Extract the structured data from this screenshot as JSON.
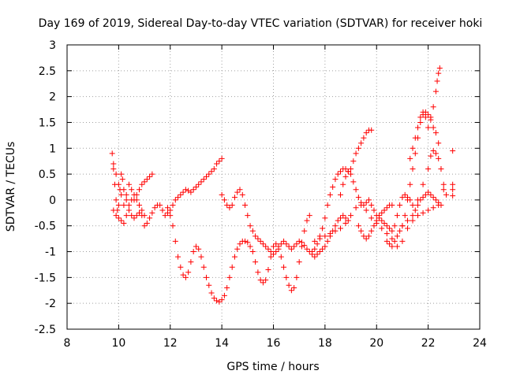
{
  "chart_data": {
    "type": "scatter",
    "title": "Day 169 of 2019, Sidereal Day-to-day VTEC variation (SDTVAR) for receiver hoki",
    "xlabel": "GPS time / hours",
    "ylabel": "SDTVAR / TECUs",
    "xlim": [
      8,
      24
    ],
    "ylim": [
      -2.5,
      3
    ],
    "x_ticks": [
      8,
      10,
      12,
      14,
      16,
      18,
      20,
      22,
      24
    ],
    "y_ticks": [
      -2.5,
      -2,
      -1.5,
      -1,
      -0.5,
      0,
      0.5,
      1,
      1.5,
      2,
      2.5,
      3
    ],
    "x_tick_labels": [
      "8",
      "10",
      "12",
      "14",
      "16",
      "18",
      "20",
      "22",
      "24"
    ],
    "y_tick_labels": [
      "-2.5",
      "-2",
      "-1.5",
      "-1",
      "-0.5",
      "0",
      "0.5",
      "1",
      "1.5",
      "2",
      "2.5",
      "3"
    ],
    "grid": true,
    "marker": "+",
    "color": "#ff0000",
    "series": [
      {
        "x": [
          9.75,
          9.8,
          9.85,
          9.9,
          9.95,
          10.0,
          10.05,
          10.1,
          10.15,
          10.2,
          10.3,
          10.4,
          10.5,
          10.6,
          10.7,
          10.8,
          10.9,
          11.0,
          11.1,
          11.2,
          11.3,
          11.4,
          11.5,
          11.6,
          11.7,
          11.8,
          11.9,
          12.0,
          12.1,
          12.2,
          12.3,
          12.4,
          12.5,
          12.6,
          12.7,
          12.8,
          12.9,
          13.0,
          13.1,
          13.2,
          13.3,
          13.4,
          13.5,
          13.6,
          13.7,
          13.8,
          13.9,
          14.0
        ],
        "y": [
          0.9,
          0.6,
          0.3,
          0.0,
          -0.2,
          -0.1,
          0.2,
          0.5,
          0.4,
          0.2,
          0.0,
          -0.2,
          -0.3,
          -0.35,
          -0.3,
          -0.25,
          -0.3,
          -0.5,
          -0.45,
          -0.35,
          -0.25,
          -0.15,
          -0.1,
          -0.1,
          -0.2,
          -0.3,
          -0.25,
          -0.2,
          -0.1,
          0.0,
          0.05,
          0.1,
          0.15,
          0.2,
          0.18,
          0.15,
          0.2,
          0.25,
          0.3,
          0.35,
          0.4,
          0.45,
          0.5,
          0.55,
          0.6,
          0.7,
          0.75,
          0.8
        ]
      },
      {
        "x": [
          9.8,
          9.9,
          10.0,
          10.1,
          10.2,
          10.3,
          10.4,
          10.5,
          10.6,
          10.7,
          10.8,
          10.9,
          11.0,
          11.1,
          11.2,
          11.3
        ],
        "y": [
          0.7,
          0.5,
          0.3,
          0.1,
          -0.1,
          0.1,
          0.3,
          0.2,
          0.0,
          0.1,
          0.2,
          0.3,
          0.35,
          0.4,
          0.45,
          0.5
        ]
      },
      {
        "x": [
          9.8,
          9.9,
          10.0,
          10.1,
          10.2,
          10.3,
          10.4,
          10.5,
          10.6,
          10.7,
          10.8,
          10.9,
          11.0
        ],
        "y": [
          -0.2,
          -0.3,
          -0.35,
          -0.4,
          -0.45,
          -0.3,
          -0.1,
          0.0,
          0.1,
          0.0,
          -0.1,
          -0.2,
          -0.3
        ]
      },
      {
        "x": [
          11.9,
          12.0,
          12.1,
          12.2,
          12.3,
          12.4,
          12.5,
          12.6,
          12.7,
          12.8,
          12.9,
          13.0,
          13.1,
          13.2,
          13.3,
          13.4,
          13.5,
          13.6,
          13.7,
          13.8,
          13.9,
          14.0,
          14.1,
          14.2,
          14.3,
          14.4,
          14.5,
          14.6,
          14.7,
          14.8,
          14.9,
          15.0,
          15.1,
          15.2,
          15.3,
          15.4,
          15.5,
          15.6,
          15.7,
          15.8,
          15.9,
          16.0,
          16.1,
          16.2,
          16.3,
          16.4,
          16.5,
          16.6,
          16.7,
          16.8,
          16.9,
          17.0,
          17.1,
          17.2,
          17.3,
          17.4
        ],
        "y": [
          -0.15,
          -0.3,
          -0.5,
          -0.8,
          -1.1,
          -1.3,
          -1.45,
          -1.5,
          -1.4,
          -1.2,
          -1.0,
          -0.9,
          -0.95,
          -1.1,
          -1.3,
          -1.5,
          -1.65,
          -1.8,
          -1.9,
          -1.95,
          -1.97,
          -1.93,
          -1.85,
          -1.7,
          -1.5,
          -1.3,
          -1.1,
          -0.95,
          -0.85,
          -0.8,
          -0.8,
          -0.82,
          -0.9,
          -1.0,
          -1.2,
          -1.4,
          -1.55,
          -1.6,
          -1.55,
          -1.35,
          -1.1,
          -0.9,
          -0.85,
          -0.95,
          -1.1,
          -1.3,
          -1.5,
          -1.65,
          -1.75,
          -1.7,
          -1.5,
          -1.2,
          -0.9,
          -0.6,
          -0.4,
          -0.3
        ]
      },
      {
        "x": [
          14.0,
          14.1,
          14.2,
          14.3,
          14.4,
          14.5,
          14.6,
          14.7,
          14.8,
          14.9,
          15.0,
          15.1,
          15.2,
          15.3,
          15.4,
          15.5,
          15.6,
          15.7,
          15.8,
          15.9,
          16.0,
          16.1,
          16.2,
          16.3,
          16.4,
          16.5,
          16.6,
          16.7,
          16.8,
          16.9,
          17.0,
          17.1,
          17.2,
          17.3,
          17.4,
          17.5,
          17.6,
          17.7,
          17.8,
          17.9,
          18.0,
          18.1,
          18.2,
          18.3,
          18.4,
          18.5,
          18.6,
          18.7,
          18.8,
          18.9
        ],
        "y": [
          0.1,
          0.0,
          -0.1,
          -0.15,
          -0.1,
          0.05,
          0.15,
          0.2,
          0.1,
          -0.1,
          -0.3,
          -0.5,
          -0.6,
          -0.7,
          -0.75,
          -0.8,
          -0.85,
          -0.9,
          -0.95,
          -1.0,
          -1.05,
          -1.0,
          -0.9,
          -0.85,
          -0.8,
          -0.85,
          -0.9,
          -0.95,
          -0.9,
          -0.85,
          -0.8,
          -0.82,
          -0.88,
          -0.95,
          -1.0,
          -1.05,
          -1.1,
          -1.05,
          -1.0,
          -0.95,
          -0.9,
          -0.8,
          -0.7,
          -0.6,
          -0.5,
          -0.4,
          -0.35,
          -0.3,
          -0.35,
          -0.4
        ]
      },
      {
        "x": [
          17.5,
          17.6,
          17.7,
          17.8,
          17.9,
          18.0,
          18.1,
          18.2,
          18.3,
          18.4,
          18.5,
          18.6,
          18.7,
          18.8,
          18.9,
          19.0,
          19.1,
          19.2,
          19.3,
          19.4,
          19.5,
          19.6,
          19.7,
          19.8
        ],
        "y": [
          -1.0,
          -0.95,
          -0.85,
          -0.7,
          -0.55,
          -0.35,
          -0.1,
          0.1,
          0.25,
          0.4,
          0.5,
          0.55,
          0.6,
          0.6,
          0.55,
          0.6,
          0.75,
          0.9,
          1.0,
          1.1,
          1.2,
          1.3,
          1.35,
          1.35
        ]
      },
      {
        "x": [
          17.6,
          17.8,
          18.0,
          18.2,
          18.4,
          18.6,
          18.8,
          19.0,
          19.2,
          19.4,
          19.6,
          19.8,
          20.0,
          20.2,
          20.4,
          20.6,
          20.8,
          21.0,
          21.2,
          21.4,
          21.6,
          21.8,
          22.0,
          22.2,
          22.4
        ],
        "y": [
          -0.8,
          -0.75,
          -0.7,
          -0.65,
          -0.6,
          -0.55,
          -0.45,
          -0.3,
          -0.15,
          -0.1,
          -0.2,
          -0.35,
          -0.45,
          -0.55,
          -0.65,
          -0.75,
          -0.9,
          -0.8,
          -0.55,
          -0.4,
          -0.3,
          -0.25,
          -0.2,
          -0.15,
          -0.1
        ]
      },
      {
        "x": [
          18.6,
          18.7,
          18.8,
          18.9,
          19.0,
          19.1,
          19.2,
          19.3,
          19.4,
          19.5,
          19.6,
          19.7,
          19.8,
          19.9,
          20.0,
          20.1,
          20.2,
          20.3,
          20.4,
          20.5,
          20.6,
          20.7,
          20.8,
          20.9,
          21.0,
          21.1,
          21.2,
          21.3,
          21.4,
          21.5,
          21.6,
          21.7,
          21.8,
          21.9,
          22.0,
          22.1,
          22.2,
          22.3,
          22.4,
          22.5
        ],
        "y": [
          0.1,
          0.3,
          0.45,
          0.55,
          0.5,
          0.35,
          0.2,
          0.05,
          -0.05,
          -0.1,
          -0.05,
          0.0,
          -0.1,
          -0.2,
          -0.3,
          -0.35,
          -0.4,
          -0.45,
          -0.5,
          -0.55,
          -0.6,
          -0.5,
          -0.3,
          -0.1,
          0.05,
          0.1,
          0.05,
          0.0,
          -0.1,
          -0.2,
          -0.1,
          0.0,
          0.05,
          0.1,
          0.15,
          0.1,
          0.05,
          0.0,
          -0.05,
          -0.1
        ]
      },
      {
        "x": [
          19.3,
          19.4,
          19.5,
          19.6,
          19.7,
          19.8,
          19.9,
          20.0,
          20.1,
          20.2,
          20.3,
          20.4,
          20.5,
          20.6
        ],
        "y": [
          -0.5,
          -0.6,
          -0.7,
          -0.75,
          -0.7,
          -0.6,
          -0.5,
          -0.4,
          -0.3,
          -0.25,
          -0.2,
          -0.15,
          -0.1,
          -0.1
        ]
      },
      {
        "x": [
          20.4,
          20.5,
          20.6,
          20.7,
          20.8,
          20.9,
          21.0,
          21.1,
          21.2,
          21.3,
          21.4,
          21.5,
          21.6,
          21.7,
          21.8,
          21.9,
          22.0,
          22.1,
          22.2,
          22.3,
          22.4,
          22.5,
          22.6
        ],
        "y": [
          -0.8,
          -0.85,
          -0.9,
          -0.8,
          -0.7,
          -0.6,
          -0.5,
          -0.3,
          0.0,
          0.3,
          0.6,
          0.9,
          1.2,
          1.5,
          1.65,
          1.7,
          1.65,
          1.55,
          1.4,
          1.3,
          1.1,
          0.6,
          0.2
        ]
      },
      {
        "x": [
          21.3,
          21.4,
          21.5,
          21.6,
          21.7,
          21.8,
          21.9,
          22.0,
          22.1,
          22.2,
          22.3,
          22.35,
          22.4,
          22.45
        ],
        "y": [
          0.8,
          1.0,
          1.2,
          1.4,
          1.6,
          1.7,
          1.6,
          1.4,
          1.6,
          1.8,
          2.1,
          2.3,
          2.45,
          2.55
        ]
      },
      {
        "x": [
          21.0,
          21.2,
          21.4,
          21.6,
          21.8,
          22.0,
          22.1,
          22.2,
          22.3,
          22.4,
          22.5,
          22.6,
          22.7
        ],
        "y": [
          -0.5,
          -0.4,
          -0.3,
          0.0,
          0.3,
          0.6,
          0.85,
          0.95,
          0.9,
          0.8,
          0.6,
          0.3,
          0.1
        ]
      },
      {
        "x": [
          22.95,
          22.95,
          22.95,
          22.95
        ],
        "y": [
          0.95,
          0.3,
          0.2,
          0.08
        ]
      }
    ]
  }
}
